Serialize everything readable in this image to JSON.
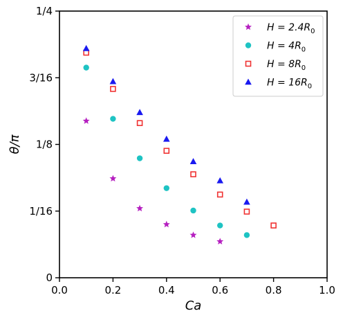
{
  "chart_data": {
    "type": "scatter",
    "title": "",
    "xlabel": "Ca",
    "ylabel": "θ/π",
    "xlim": [
      0.0,
      1.0
    ],
    "ylim": [
      0.0,
      0.25
    ],
    "xticks": [
      {
        "value": 0.0,
        "label": "0.0"
      },
      {
        "value": 0.2,
        "label": "0.2"
      },
      {
        "value": 0.4,
        "label": "0.4"
      },
      {
        "value": 0.6,
        "label": "0.6"
      },
      {
        "value": 0.8,
        "label": "0.8"
      },
      {
        "value": 1.0,
        "label": "1.0"
      }
    ],
    "yticks": [
      {
        "value": 0.0,
        "label": "0"
      },
      {
        "value": 0.0625,
        "label": "1/16"
      },
      {
        "value": 0.125,
        "label": "1/8"
      },
      {
        "value": 0.1875,
        "label": "3/16"
      },
      {
        "value": 0.25,
        "label": "1/4"
      }
    ],
    "grid": false,
    "legend_position": "top-right",
    "series": [
      {
        "name": "H = 2.4R0",
        "name_main": "H = 2.4R",
        "name_sub": "0",
        "marker": "star",
        "color": "#b51fc0",
        "x": [
          0.1,
          0.2,
          0.3,
          0.4,
          0.5,
          0.6
        ],
        "y": [
          0.147,
          0.093,
          0.065,
          0.05,
          0.04,
          0.034
        ]
      },
      {
        "name": "H = 4R0",
        "name_main": "H = 4R",
        "name_sub": "0",
        "marker": "circle",
        "color": "#1ec3c3",
        "x": [
          0.1,
          0.2,
          0.3,
          0.4,
          0.5,
          0.6,
          0.7
        ],
        "y": [
          0.197,
          0.149,
          0.112,
          0.084,
          0.063,
          0.049,
          0.04
        ]
      },
      {
        "name": "H = 8R0",
        "name_main": "H = 8R",
        "name_sub": "0",
        "marker": "square-open",
        "color": "#f03232",
        "x": [
          0.1,
          0.2,
          0.3,
          0.4,
          0.5,
          0.6,
          0.7,
          0.8
        ],
        "y": [
          0.211,
          0.177,
          0.145,
          0.119,
          0.097,
          0.078,
          0.062,
          0.049
        ]
      },
      {
        "name": "H = 16R0",
        "name_main": "H = 16R",
        "name_sub": "0",
        "marker": "triangle",
        "color": "#1a1af0",
        "x": [
          0.1,
          0.2,
          0.3,
          0.4,
          0.5,
          0.6,
          0.7
        ],
        "y": [
          0.215,
          0.184,
          0.155,
          0.13,
          0.109,
          0.091,
          0.071
        ]
      }
    ]
  }
}
